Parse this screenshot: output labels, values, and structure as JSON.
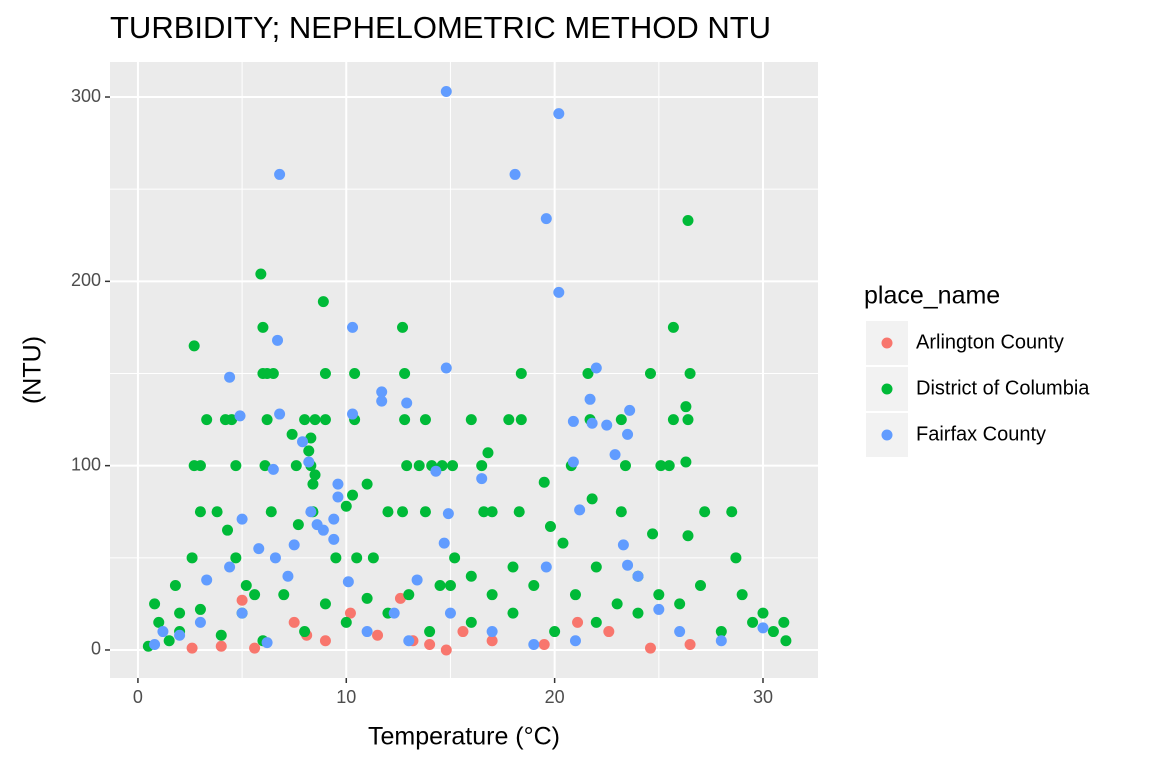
{
  "chart_data": {
    "type": "scatter",
    "title": "TURBIDITY; NEPHELOMETRIC METHOD NTU",
    "x_label": "Temperature (°C)",
    "y_label": "(NTU)",
    "legend_title": "place_name",
    "legend_position": "right",
    "grid": true,
    "xlim": [
      -1.34,
      32.64
    ],
    "ylim": [
      -15.2,
      319
    ],
    "xticks": [
      0,
      10,
      20,
      30
    ],
    "yticks": [
      0,
      100,
      200,
      300
    ],
    "series": [
      {
        "name": "Arlington County",
        "color": "#F8766D",
        "x": [
          2.6,
          5,
          5.6,
          7.5,
          8.1,
          10.2,
          11.5,
          12.6,
          13.2,
          14,
          14.8,
          15.6,
          17,
          19.5,
          21.1,
          22.6,
          24.6,
          26.5,
          4,
          9
        ],
        "y": [
          1,
          27,
          1,
          15,
          8,
          20,
          8,
          28,
          5,
          3,
          0,
          10,
          5,
          3,
          15,
          10,
          1,
          3,
          2,
          5
        ]
      },
      {
        "name": "District of Columbia",
        "color": "#00BA38",
        "x": [
          0.5,
          0.8,
          1,
          1.8,
          2,
          2.6,
          2.7,
          2.7,
          3,
          3,
          3.3,
          3.8,
          4.2,
          4.3,
          4.5,
          4.7,
          4.7,
          5.2,
          5.6,
          5.9,
          6,
          6,
          6.2,
          6.5,
          6.1,
          6.2,
          6.4,
          7.4,
          7.6,
          7.7,
          8,
          8.3,
          8.4,
          8.4,
          8.5,
          8.9,
          9,
          9,
          9.5,
          10,
          10.3,
          10.4,
          10.4,
          10.5,
          11,
          11.3,
          12,
          12.7,
          12.8,
          12.8,
          12.9,
          12.7,
          13.5,
          13.8,
          13.8,
          14.1,
          14.6,
          15.1,
          15.2,
          16,
          16.5,
          16.6,
          16.8,
          17,
          17.8,
          18.3,
          18.4,
          18.4,
          19.5,
          19.8,
          20.4,
          20.8,
          21.6,
          21.7,
          21.8,
          23.2,
          23.2,
          23.4,
          24.6,
          24.7,
          25.1,
          25.5,
          25.7,
          25.7,
          26.3,
          26.4,
          26.4,
          26.3,
          26.5,
          26.4,
          27.2,
          28.5,
          28.7,
          29.5,
          30.5,
          31.1,
          31,
          30,
          29,
          27,
          25,
          23,
          21,
          19,
          17,
          15,
          13,
          11,
          9,
          7,
          5,
          3,
          2,
          1.5,
          4,
          6,
          8,
          10,
          12,
          14,
          16,
          18,
          20,
          22,
          24,
          26,
          28,
          8.3,
          8.2,
          8.5,
          14.5,
          16,
          18,
          22,
          24
        ],
        "y": [
          2,
          25,
          15,
          35,
          10,
          50,
          165,
          100,
          100,
          75,
          125,
          75,
          125,
          65,
          125,
          100,
          50,
          35,
          30,
          204,
          175,
          150,
          150,
          150,
          100,
          125,
          75,
          117,
          100,
          68,
          125,
          100,
          90,
          75,
          125,
          189,
          150,
          125,
          50,
          78,
          84,
          150,
          125,
          50,
          90,
          50,
          75,
          175,
          150,
          125,
          100,
          75,
          100,
          125,
          75,
          100,
          100,
          100,
          50,
          125,
          100,
          75,
          107,
          75,
          125,
          75,
          125,
          150,
          91,
          67,
          58,
          100,
          150,
          125,
          82,
          125,
          75,
          100,
          150,
          63,
          100,
          100,
          175,
          125,
          132,
          233,
          125,
          102,
          150,
          62,
          75,
          75,
          50,
          15,
          10,
          5,
          15,
          20,
          30,
          35,
          30,
          25,
          30,
          35,
          30,
          35,
          30,
          28,
          25,
          30,
          20,
          22,
          20,
          5,
          8,
          5,
          10,
          15,
          20,
          10,
          15,
          20,
          10,
          15,
          20,
          25,
          10,
          115,
          108,
          95,
          35,
          40,
          45,
          45,
          40
        ]
      },
      {
        "name": "Fairfax County",
        "color": "#619CFF",
        "x": [
          0.8,
          1.2,
          2,
          3.3,
          4.4,
          4.4,
          4.9,
          5,
          5.8,
          6.2,
          6.6,
          6.5,
          6.7,
          6.8,
          6.8,
          7.2,
          7.5,
          7.9,
          8.2,
          8.3,
          8.6,
          8.9,
          9.4,
          9.4,
          9.6,
          9.6,
          10.1,
          10.3,
          10.3,
          11.7,
          11.7,
          12.3,
          12.9,
          13.4,
          14.3,
          14.7,
          14.8,
          14.8,
          14.9,
          16.5,
          18.1,
          19.6,
          19.6,
          20.2,
          20.2,
          20.9,
          20.9,
          21.2,
          21.7,
          21.8,
          22,
          22.5,
          22.9,
          23.3,
          23.5,
          23.6,
          23.5,
          24,
          25,
          26,
          28,
          30,
          17,
          19,
          21,
          15,
          11,
          13,
          3,
          5
        ],
        "y": [
          3,
          10,
          8,
          38,
          148,
          45,
          127,
          71,
          55,
          4,
          50,
          98,
          168,
          258,
          128,
          40,
          57,
          113,
          102,
          75,
          68,
          65,
          71,
          60,
          83,
          90,
          37,
          175,
          128,
          140,
          135,
          20,
          134,
          38,
          97,
          58,
          303,
          153,
          74,
          93,
          258,
          234,
          45,
          194,
          291,
          102,
          124,
          76,
          136,
          123,
          153,
          122,
          106,
          57,
          117,
          130,
          46,
          40,
          22,
          10,
          5,
          12,
          10,
          3,
          5,
          20,
          10,
          5,
          15,
          20
        ]
      }
    ]
  }
}
